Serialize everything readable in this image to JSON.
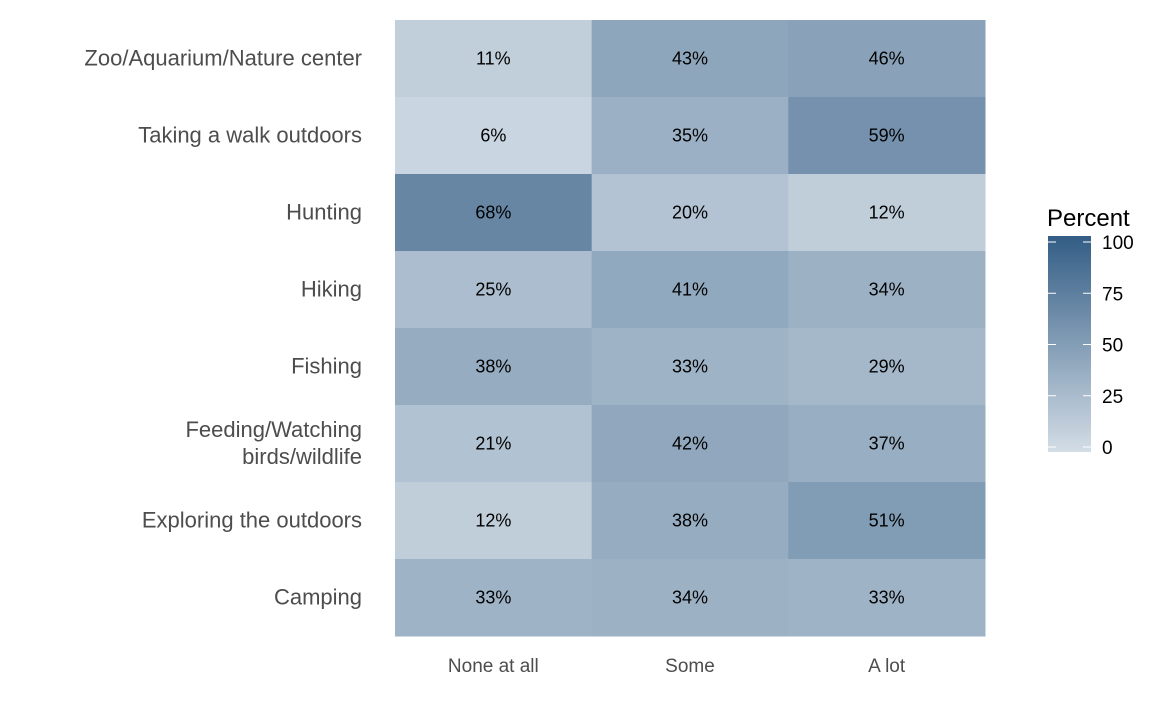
{
  "chart_data": {
    "type": "heatmap",
    "title": "",
    "xlabel": "",
    "ylabel": "",
    "x_categories": [
      "None at all",
      "Some",
      "A lot"
    ],
    "y_categories": [
      "Zoo/Aquarium/Nature center",
      "Taking a walk outdoors",
      "Hunting",
      "Hiking",
      "Fishing",
      "Feeding/Watching birds/wildlife",
      "Exploring the outdoors",
      "Camping"
    ],
    "y_label_lines": [
      [
        "Zoo/Aquarium/Nature center"
      ],
      [
        "Taking a walk outdoors"
      ],
      [
        "Hunting"
      ],
      [
        "Hiking"
      ],
      [
        "Fishing"
      ],
      [
        "Feeding/Watching",
        "birds/wildlife"
      ],
      [
        "Exploring the outdoors"
      ],
      [
        "Camping"
      ]
    ],
    "values": [
      [
        11,
        43,
        46
      ],
      [
        6,
        35,
        59
      ],
      [
        68,
        20,
        12
      ],
      [
        25,
        41,
        34
      ],
      [
        38,
        33,
        29
      ],
      [
        21,
        42,
        37
      ],
      [
        12,
        38,
        51
      ],
      [
        33,
        34,
        33
      ]
    ],
    "value_suffix": "%",
    "legend": {
      "title": "Percent",
      "range": [
        0,
        100
      ],
      "ticks": [
        0,
        25,
        50,
        75,
        100
      ],
      "low_color": "#d3dde6",
      "high_color": "#335d85",
      "placement": "right"
    },
    "grid": false
  }
}
